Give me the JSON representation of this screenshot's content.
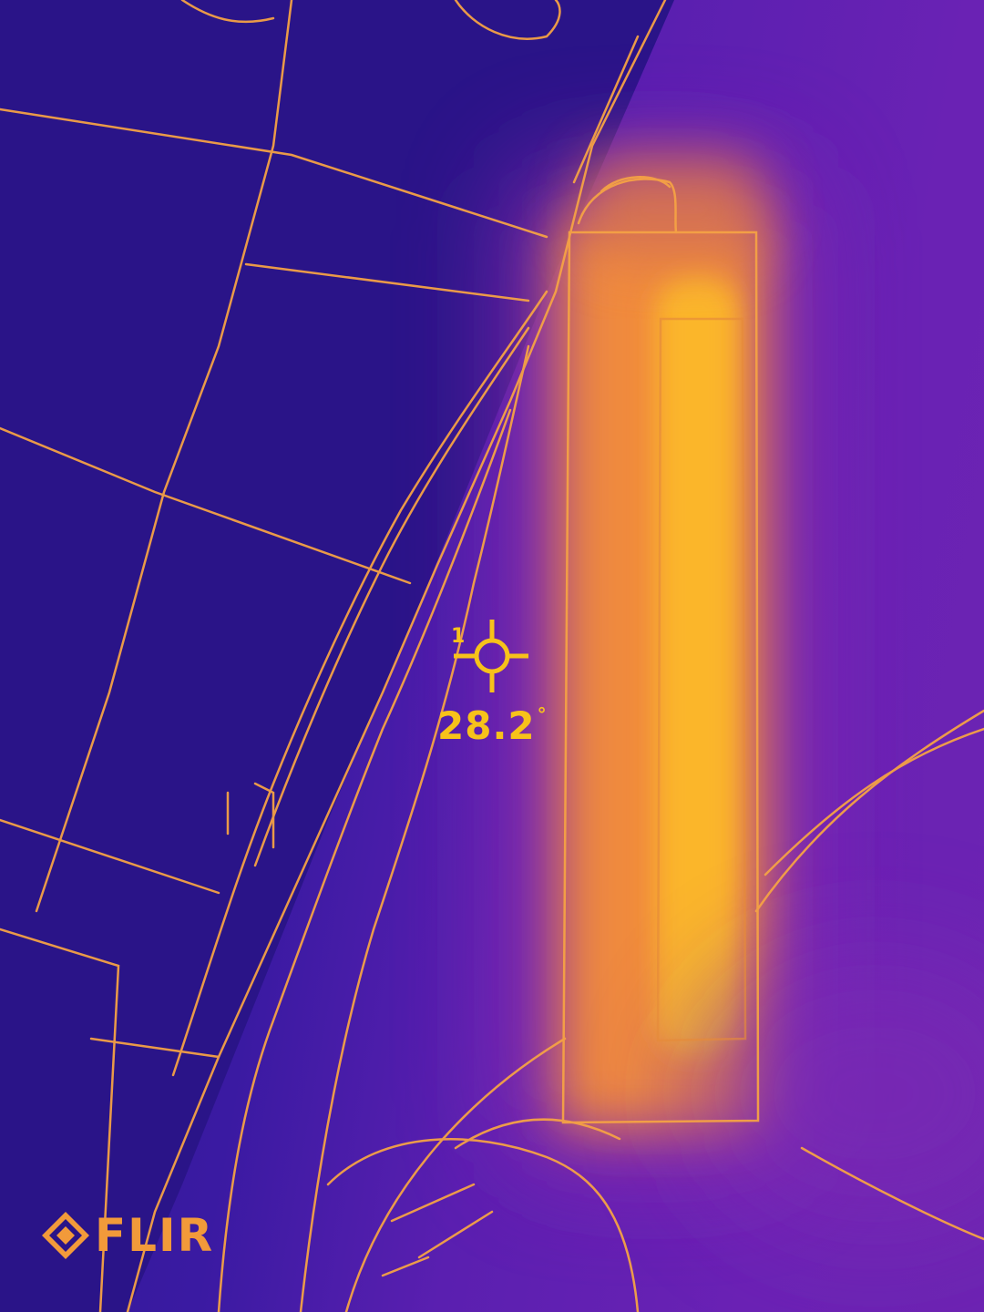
{
  "spot_meter": {
    "label": "1",
    "temperature": "28.2",
    "unit": "°"
  },
  "brand": {
    "logo_text": "FLIR"
  },
  "colors": {
    "hot": "#f9b52a",
    "warm": "#f08a3e",
    "cool": "#3a1aa2",
    "reticle": "#f7c21a"
  }
}
